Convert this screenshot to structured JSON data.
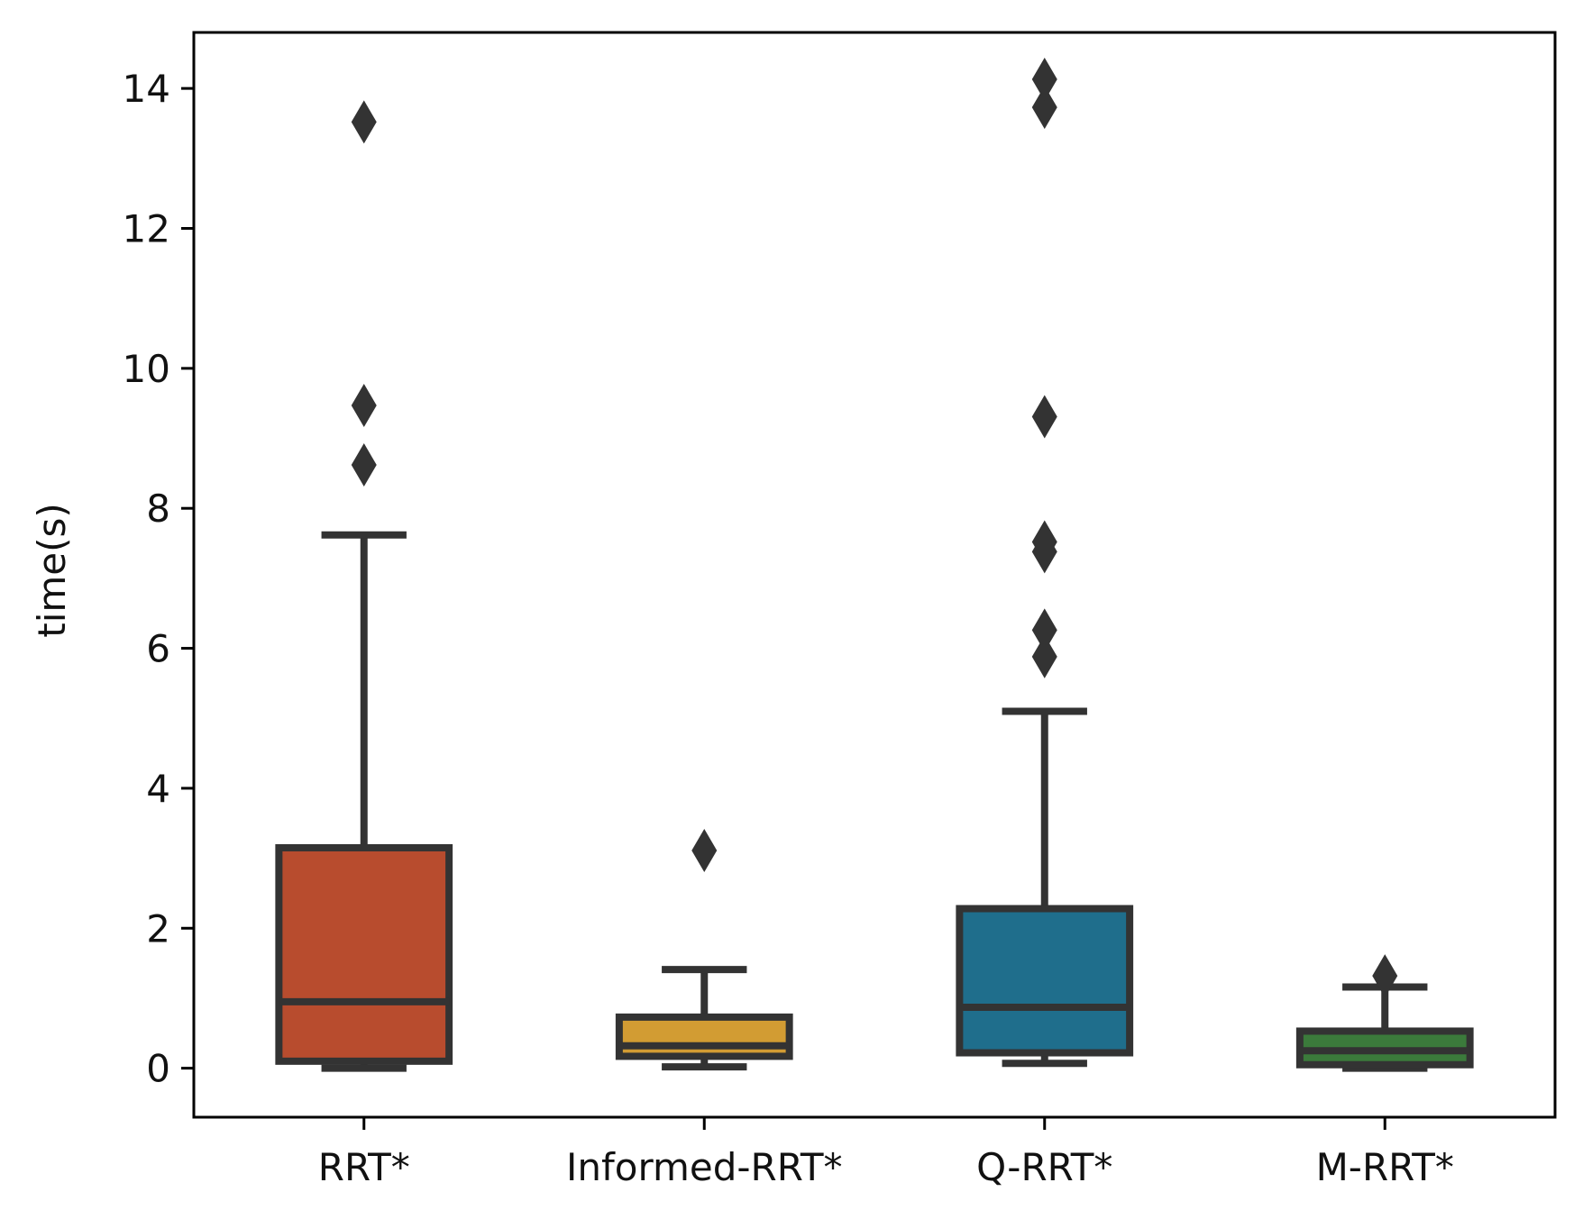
{
  "chart_data": {
    "type": "box",
    "title": "",
    "xlabel": "",
    "ylabel": "time(s)",
    "ylim": [
      -0.7,
      14.8
    ],
    "yticks": [
      0,
      2,
      4,
      6,
      8,
      10,
      12,
      14
    ],
    "grid": false,
    "colors": {
      "frame": "#000000",
      "box_line": "#333333"
    },
    "series": [
      {
        "name": "RRT*",
        "color": "#B84C2E",
        "whisker_low": 0.0,
        "q1": 0.1,
        "median": 0.95,
        "q3": 3.15,
        "whisker_high": 7.62,
        "outliers": [
          8.62,
          9.47,
          13.52
        ]
      },
      {
        "name": "Informed-RRT*",
        "color": "#D29C33",
        "whisker_low": 0.02,
        "q1": 0.17,
        "median": 0.32,
        "q3": 0.73,
        "whisker_high": 1.41,
        "outliers": [
          3.11
        ]
      },
      {
        "name": "Q-RRT*",
        "color": "#1F6E8C",
        "whisker_low": 0.07,
        "q1": 0.22,
        "median": 0.87,
        "q3": 2.28,
        "whisker_high": 5.1,
        "outliers": [
          5.88,
          6.26,
          7.38,
          7.52,
          9.31,
          13.73,
          14.13
        ]
      },
      {
        "name": "M-RRT*",
        "color": "#3B7A3B",
        "whisker_low": 0.0,
        "q1": 0.05,
        "median": 0.25,
        "q3": 0.53,
        "whisker_high": 1.16,
        "outliers": [
          1.32
        ]
      }
    ]
  }
}
